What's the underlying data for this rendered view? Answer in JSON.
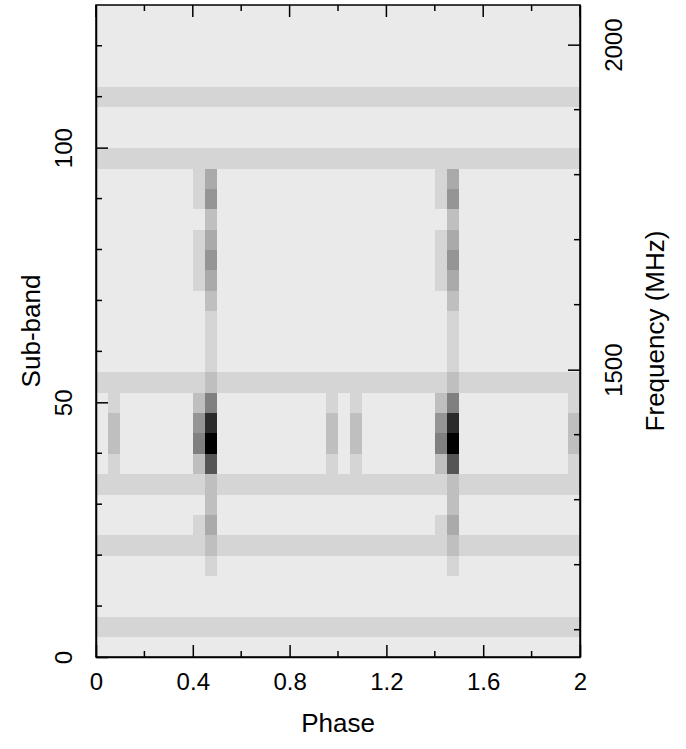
{
  "chart_data": {
    "type": "heatmap",
    "xlabel": "Phase",
    "ylabel": "Sub-band",
    "y2label": "Frequency (MHz)",
    "xlim": [
      0,
      2
    ],
    "ylim": [
      0,
      128
    ],
    "y2lim": [
      1058,
      2061
    ],
    "xticks": [
      0,
      0.4,
      0.8,
      1.2,
      1.6,
      2
    ],
    "xminorticks": [
      0.2,
      0.6,
      1,
      1.4,
      1.8
    ],
    "yticks": [
      0,
      50,
      100
    ],
    "yminorticks": [
      10,
      20,
      30,
      40,
      60,
      70,
      80,
      90,
      110,
      120
    ],
    "y2ticks": [
      1500,
      2000
    ],
    "y2minorticks": [
      1100,
      1200,
      1300,
      1400,
      1600,
      1700,
      1800,
      1900
    ],
    "zlim": [
      0,
      12
    ],
    "x_edges": [
      0,
      0.05,
      0.1,
      0.15,
      0.2,
      0.25,
      0.3,
      0.35,
      0.4,
      0.45,
      0.5,
      0.55,
      0.6,
      0.65,
      0.7,
      0.75,
      0.8,
      0.85,
      0.9,
      0.95,
      1,
      1.05,
      1.1,
      1.15,
      1.2,
      1.25,
      1.3,
      1.35,
      1.4,
      1.45,
      1.5,
      1.55,
      1.6,
      1.65,
      1.7,
      1.75,
      1.8,
      1.85,
      1.9,
      1.95,
      2
    ],
    "y_edges": [
      0,
      4,
      8,
      12,
      16,
      20,
      24,
      28,
      32,
      36,
      40,
      44,
      48,
      52,
      56,
      60,
      64,
      68,
      72,
      76,
      80,
      84,
      88,
      92,
      96,
      100,
      104,
      108,
      112,
      116,
      120,
      124,
      128
    ],
    "cells": [
      [
        1,
        1,
        1,
        1,
        1,
        1,
        1,
        1,
        1,
        1,
        1,
        1,
        1,
        1,
        1,
        1,
        1,
        1,
        1,
        1,
        1,
        1,
        1,
        1,
        1,
        1,
        1,
        1,
        1,
        1,
        1,
        1,
        1,
        1,
        1,
        1,
        1,
        1,
        1,
        1
      ],
      [
        2,
        2,
        2,
        2,
        2,
        2,
        2,
        2,
        2,
        2,
        2,
        2,
        2,
        2,
        2,
        2,
        2,
        2,
        2,
        2,
        2,
        2,
        2,
        2,
        2,
        2,
        2,
        2,
        2,
        2,
        2,
        2,
        2,
        2,
        2,
        2,
        2,
        2,
        2,
        2
      ],
      [
        1,
        1,
        1,
        1,
        1,
        1,
        1,
        1,
        1,
        1,
        1,
        1,
        1,
        1,
        1,
        1,
        1,
        1,
        1,
        1,
        1,
        1,
        1,
        1,
        1,
        1,
        1,
        1,
        1,
        1,
        1,
        1,
        1,
        1,
        1,
        1,
        1,
        1,
        1,
        1
      ],
      [
        1,
        1,
        1,
        1,
        1,
        1,
        1,
        1,
        1,
        1,
        1,
        1,
        1,
        1,
        1,
        1,
        1,
        1,
        1,
        1,
        1,
        1,
        1,
        1,
        1,
        1,
        1,
        1,
        1,
        1,
        1,
        1,
        1,
        1,
        1,
        1,
        1,
        1,
        1,
        1
      ],
      [
        1,
        1,
        1,
        1,
        1,
        1,
        1,
        1,
        1,
        2,
        1,
        1,
        1,
        1,
        1,
        1,
        1,
        1,
        1,
        1,
        1,
        1,
        1,
        1,
        1,
        1,
        1,
        1,
        1,
        2,
        1,
        1,
        1,
        1,
        1,
        1,
        1,
        1,
        1,
        1
      ],
      [
        2,
        2,
        2,
        2,
        2,
        2,
        2,
        2,
        2,
        3,
        2,
        2,
        2,
        2,
        2,
        2,
        2,
        2,
        2,
        2,
        2,
        2,
        2,
        2,
        2,
        2,
        2,
        2,
        2,
        3,
        2,
        2,
        2,
        2,
        2,
        2,
        2,
        2,
        2,
        2
      ],
      [
        1,
        1,
        1,
        1,
        1,
        1,
        1,
        1,
        2,
        4,
        1,
        1,
        1,
        1,
        1,
        1,
        1,
        1,
        1,
        1,
        1,
        1,
        1,
        1,
        1,
        1,
        1,
        1,
        2,
        4,
        1,
        1,
        1,
        1,
        1,
        1,
        1,
        1,
        1,
        1
      ],
      [
        1,
        1,
        1,
        1,
        1,
        1,
        1,
        1,
        1,
        3,
        1,
        1,
        1,
        1,
        1,
        1,
        1,
        1,
        1,
        1,
        1,
        1,
        1,
        1,
        1,
        1,
        1,
        1,
        1,
        3,
        1,
        1,
        1,
        1,
        1,
        1,
        1,
        1,
        1,
        1
      ],
      [
        2,
        2,
        2,
        2,
        2,
        2,
        2,
        2,
        2,
        3,
        2,
        2,
        2,
        2,
        2,
        2,
        2,
        2,
        2,
        2,
        2,
        2,
        2,
        2,
        2,
        2,
        2,
        2,
        2,
        3,
        2,
        2,
        2,
        2,
        2,
        2,
        2,
        2,
        2,
        2
      ],
      [
        1,
        2,
        1,
        1,
        1,
        1,
        1,
        1,
        3,
        8,
        1,
        1,
        1,
        1,
        1,
        1,
        1,
        1,
        1,
        2,
        1,
        2,
        1,
        1,
        1,
        1,
        1,
        1,
        3,
        8,
        1,
        1,
        1,
        1,
        1,
        1,
        1,
        1,
        1,
        2
      ],
      [
        1,
        3,
        1,
        1,
        1,
        1,
        1,
        1,
        6,
        12,
        1,
        1,
        1,
        1,
        1,
        1,
        1,
        1,
        1,
        3,
        1,
        3,
        1,
        1,
        1,
        1,
        1,
        1,
        6,
        12,
        1,
        1,
        1,
        1,
        1,
        1,
        1,
        1,
        1,
        3
      ],
      [
        1,
        3,
        1,
        1,
        1,
        1,
        1,
        1,
        5,
        10,
        1,
        1,
        1,
        1,
        1,
        1,
        1,
        1,
        1,
        3,
        1,
        3,
        1,
        1,
        1,
        1,
        1,
        1,
        5,
        10,
        1,
        1,
        1,
        1,
        1,
        1,
        1,
        1,
        1,
        3
      ],
      [
        1,
        2,
        1,
        1,
        1,
        1,
        1,
        1,
        3,
        6,
        1,
        1,
        1,
        1,
        1,
        1,
        1,
        1,
        1,
        2,
        1,
        2,
        1,
        1,
        1,
        1,
        1,
        1,
        3,
        6,
        1,
        1,
        1,
        1,
        1,
        1,
        1,
        1,
        1,
        2
      ],
      [
        2,
        2,
        2,
        2,
        2,
        2,
        2,
        2,
        2,
        3,
        2,
        2,
        2,
        2,
        2,
        2,
        2,
        2,
        2,
        2,
        2,
        2,
        2,
        2,
        2,
        2,
        2,
        2,
        2,
        3,
        2,
        2,
        2,
        2,
        2,
        2,
        2,
        2,
        2,
        2
      ],
      [
        1,
        1,
        1,
        1,
        1,
        1,
        1,
        1,
        1,
        2,
        1,
        1,
        1,
        1,
        1,
        1,
        1,
        1,
        1,
        1,
        1,
        1,
        1,
        1,
        1,
        1,
        1,
        1,
        1,
        2,
        1,
        1,
        1,
        1,
        1,
        1,
        1,
        1,
        1,
        1
      ],
      [
        1,
        1,
        1,
        1,
        1,
        1,
        1,
        1,
        1,
        2,
        1,
        1,
        1,
        1,
        1,
        1,
        1,
        1,
        1,
        1,
        1,
        1,
        1,
        1,
        1,
        1,
        1,
        1,
        1,
        2,
        1,
        1,
        1,
        1,
        1,
        1,
        1,
        1,
        1,
        1
      ],
      [
        1,
        1,
        1,
        1,
        1,
        1,
        1,
        1,
        1,
        2,
        1,
        1,
        1,
        1,
        1,
        1,
        1,
        1,
        1,
        1,
        1,
        1,
        1,
        1,
        1,
        1,
        1,
        1,
        1,
        2,
        1,
        1,
        1,
        1,
        1,
        1,
        1,
        1,
        1,
        1
      ],
      [
        1,
        1,
        1,
        1,
        1,
        1,
        1,
        1,
        1,
        3,
        1,
        1,
        1,
        1,
        1,
        1,
        1,
        1,
        1,
        1,
        1,
        1,
        1,
        1,
        1,
        1,
        1,
        1,
        1,
        3,
        1,
        1,
        1,
        1,
        1,
        1,
        1,
        1,
        1,
        1
      ],
      [
        1,
        1,
        1,
        1,
        1,
        1,
        1,
        1,
        2,
        4,
        1,
        1,
        1,
        1,
        1,
        1,
        1,
        1,
        1,
        1,
        1,
        1,
        1,
        1,
        1,
        1,
        1,
        1,
        2,
        4,
        1,
        1,
        1,
        1,
        1,
        1,
        1,
        1,
        1,
        1
      ],
      [
        1,
        1,
        1,
        1,
        1,
        1,
        1,
        1,
        2,
        5,
        1,
        1,
        1,
        1,
        1,
        1,
        1,
        1,
        1,
        1,
        1,
        1,
        1,
        1,
        1,
        1,
        1,
        1,
        2,
        5,
        1,
        1,
        1,
        1,
        1,
        1,
        1,
        1,
        1,
        1
      ],
      [
        1,
        1,
        1,
        1,
        1,
        1,
        1,
        1,
        2,
        4,
        1,
        1,
        1,
        1,
        1,
        1,
        1,
        1,
        1,
        1,
        1,
        1,
        1,
        1,
        1,
        1,
        1,
        1,
        2,
        4,
        1,
        1,
        1,
        1,
        1,
        1,
        1,
        1,
        1,
        1
      ],
      [
        1,
        1,
        1,
        1,
        1,
        1,
        1,
        1,
        1,
        3,
        1,
        1,
        1,
        1,
        1,
        1,
        1,
        1,
        1,
        1,
        1,
        1,
        1,
        1,
        1,
        1,
        1,
        1,
        1,
        3,
        1,
        1,
        1,
        1,
        1,
        1,
        1,
        1,
        1,
        1
      ],
      [
        1,
        1,
        1,
        1,
        1,
        1,
        1,
        1,
        2,
        5,
        1,
        1,
        1,
        1,
        1,
        1,
        1,
        1,
        1,
        1,
        1,
        1,
        1,
        1,
        1,
        1,
        1,
        1,
        2,
        5,
        1,
        1,
        1,
        1,
        1,
        1,
        1,
        1,
        1,
        1
      ],
      [
        1,
        1,
        1,
        1,
        1,
        1,
        1,
        1,
        2,
        4,
        1,
        1,
        1,
        1,
        1,
        1,
        1,
        1,
        1,
        1,
        1,
        1,
        1,
        1,
        1,
        1,
        1,
        1,
        2,
        4,
        1,
        1,
        1,
        1,
        1,
        1,
        1,
        1,
        1,
        1
      ],
      [
        2,
        2,
        2,
        2,
        2,
        2,
        2,
        2,
        2,
        2,
        2,
        2,
        2,
        2,
        2,
        2,
        2,
        2,
        2,
        2,
        2,
        2,
        2,
        2,
        2,
        2,
        2,
        2,
        2,
        2,
        2,
        2,
        2,
        2,
        2,
        2,
        2,
        2,
        2,
        2
      ],
      [
        1,
        1,
        1,
        1,
        1,
        1,
        1,
        1,
        1,
        1,
        1,
        1,
        1,
        1,
        1,
        1,
        1,
        1,
        1,
        1,
        1,
        1,
        1,
        1,
        1,
        1,
        1,
        1,
        1,
        1,
        1,
        1,
        1,
        1,
        1,
        1,
        1,
        1,
        1,
        1
      ],
      [
        1,
        1,
        1,
        1,
        1,
        1,
        1,
        1,
        1,
        1,
        1,
        1,
        1,
        1,
        1,
        1,
        1,
        1,
        1,
        1,
        1,
        1,
        1,
        1,
        1,
        1,
        1,
        1,
        1,
        1,
        1,
        1,
        1,
        1,
        1,
        1,
        1,
        1,
        1,
        1
      ],
      [
        2,
        2,
        2,
        2,
        2,
        2,
        2,
        2,
        2,
        2,
        2,
        2,
        2,
        2,
        2,
        2,
        2,
        2,
        2,
        2,
        2,
        2,
        2,
        2,
        2,
        2,
        2,
        2,
        2,
        2,
        2,
        2,
        2,
        2,
        2,
        2,
        2,
        2,
        2,
        2
      ],
      [
        1,
        1,
        1,
        1,
        1,
        1,
        1,
        1,
        1,
        1,
        1,
        1,
        1,
        1,
        1,
        1,
        1,
        1,
        1,
        1,
        1,
        1,
        1,
        1,
        1,
        1,
        1,
        1,
        1,
        1,
        1,
        1,
        1,
        1,
        1,
        1,
        1,
        1,
        1,
        1
      ],
      [
        1,
        1,
        1,
        1,
        1,
        1,
        1,
        1,
        1,
        1,
        1,
        1,
        1,
        1,
        1,
        1,
        1,
        1,
        1,
        1,
        1,
        1,
        1,
        1,
        1,
        1,
        1,
        1,
        1,
        1,
        1,
        1,
        1,
        1,
        1,
        1,
        1,
        1,
        1,
        1
      ],
      [
        1,
        1,
        1,
        1,
        1,
        1,
        1,
        1,
        1,
        1,
        1,
        1,
        1,
        1,
        1,
        1,
        1,
        1,
        1,
        1,
        1,
        1,
        1,
        1,
        1,
        1,
        1,
        1,
        1,
        1,
        1,
        1,
        1,
        1,
        1,
        1,
        1,
        1,
        1,
        1
      ],
      [
        1,
        1,
        1,
        1,
        1,
        1,
        1,
        1,
        1,
        1,
        1,
        1,
        1,
        1,
        1,
        1,
        1,
        1,
        1,
        1,
        1,
        1,
        1,
        1,
        1,
        1,
        1,
        1,
        1,
        1,
        1,
        1,
        1,
        1,
        1,
        1,
        1,
        1,
        1,
        1
      ]
    ]
  }
}
